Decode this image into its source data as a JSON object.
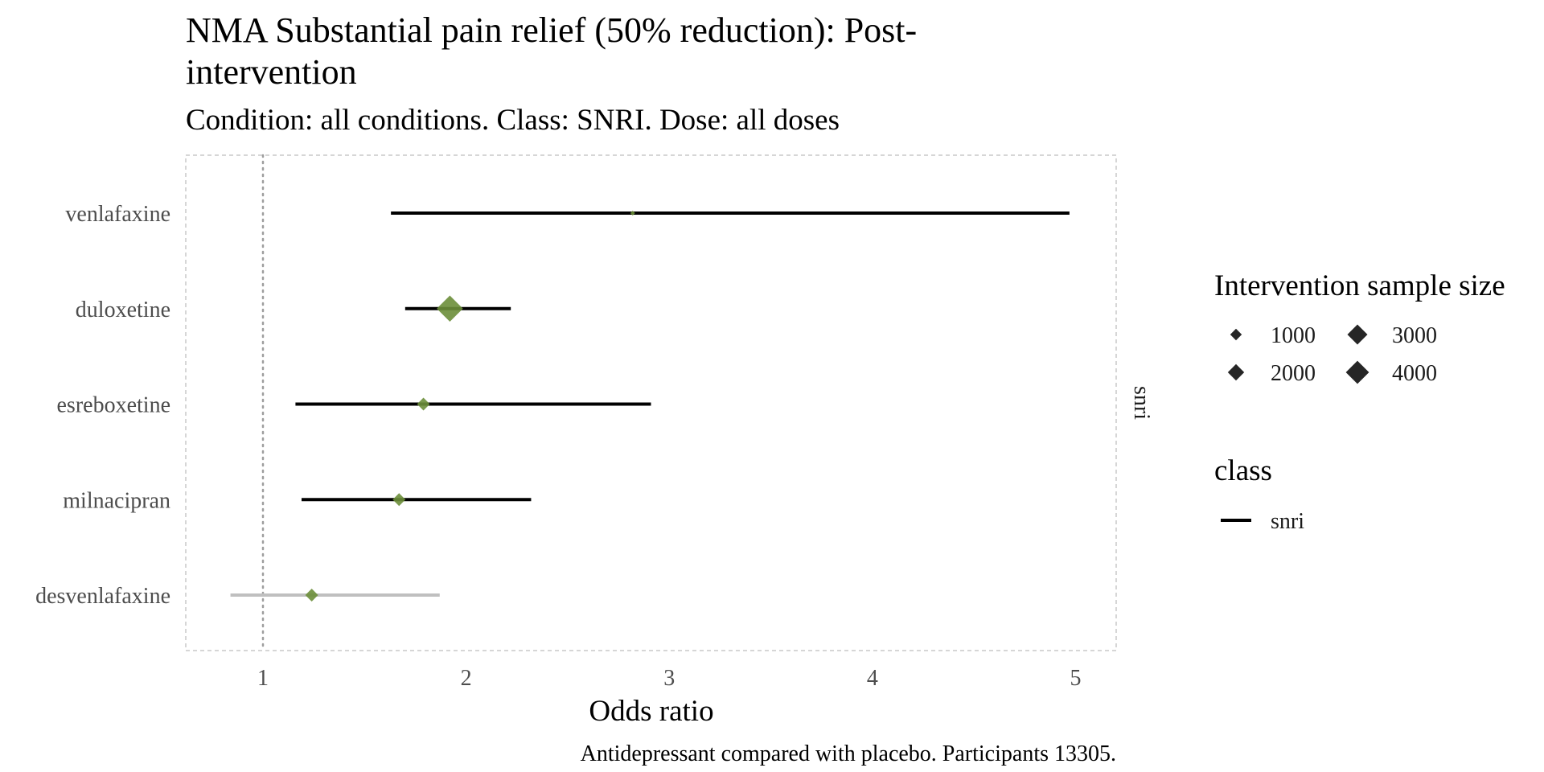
{
  "chart_data": {
    "type": "forest",
    "title_line1": "NMA Substantial pain relief (50% reduction): Post-",
    "title_line2": "intervention",
    "subtitle": "Condition: all conditions. Class: SNRI. Dose: all doses",
    "xlabel": "Odds ratio",
    "ylabel": "",
    "xlim": [
      0.62,
      5.2
    ],
    "x_ticks": [
      1,
      2,
      3,
      4,
      5
    ],
    "x_tick_labels": [
      "1",
      "2",
      "3",
      "4",
      "5"
    ],
    "reference_line": 1,
    "facet_label": "snri",
    "caption": "Antidepressant compared with placebo. Participants 13305.",
    "grid": false,
    "marker_color": "#6b8e3a",
    "ci_color": "#000000",
    "ci_color_faded": "#bfbfbf",
    "rows": [
      {
        "name": "venlafaxine",
        "estimate": 2.82,
        "lower": 1.63,
        "upper": 4.97,
        "sample_size": 40,
        "significant": true
      },
      {
        "name": "duloxetine",
        "estimate": 1.92,
        "lower": 1.7,
        "upper": 2.22,
        "sample_size": 4600,
        "significant": true
      },
      {
        "name": "esreboxetine",
        "estimate": 1.79,
        "lower": 1.16,
        "upper": 2.91,
        "sample_size": 1100,
        "significant": true
      },
      {
        "name": "milnacipran",
        "estimate": 1.67,
        "lower": 1.19,
        "upper": 2.32,
        "sample_size": 1100,
        "significant": true
      },
      {
        "name": "desvenlafaxine",
        "estimate": 1.24,
        "lower": 0.84,
        "upper": 1.87,
        "sample_size": 1100,
        "significant": false
      }
    ],
    "legend_size": {
      "title": "Intervention sample size",
      "placement": "right",
      "entries": [
        {
          "label": "1000",
          "value": 1000
        },
        {
          "label": "3000",
          "value": 3000
        },
        {
          "label": "2000",
          "value": 2000
        },
        {
          "label": "4000",
          "value": 4000
        }
      ],
      "marker_color": "#262626"
    },
    "legend_class": {
      "title": "class",
      "entries": [
        {
          "label": "snri",
          "color": "#000000"
        }
      ]
    }
  }
}
